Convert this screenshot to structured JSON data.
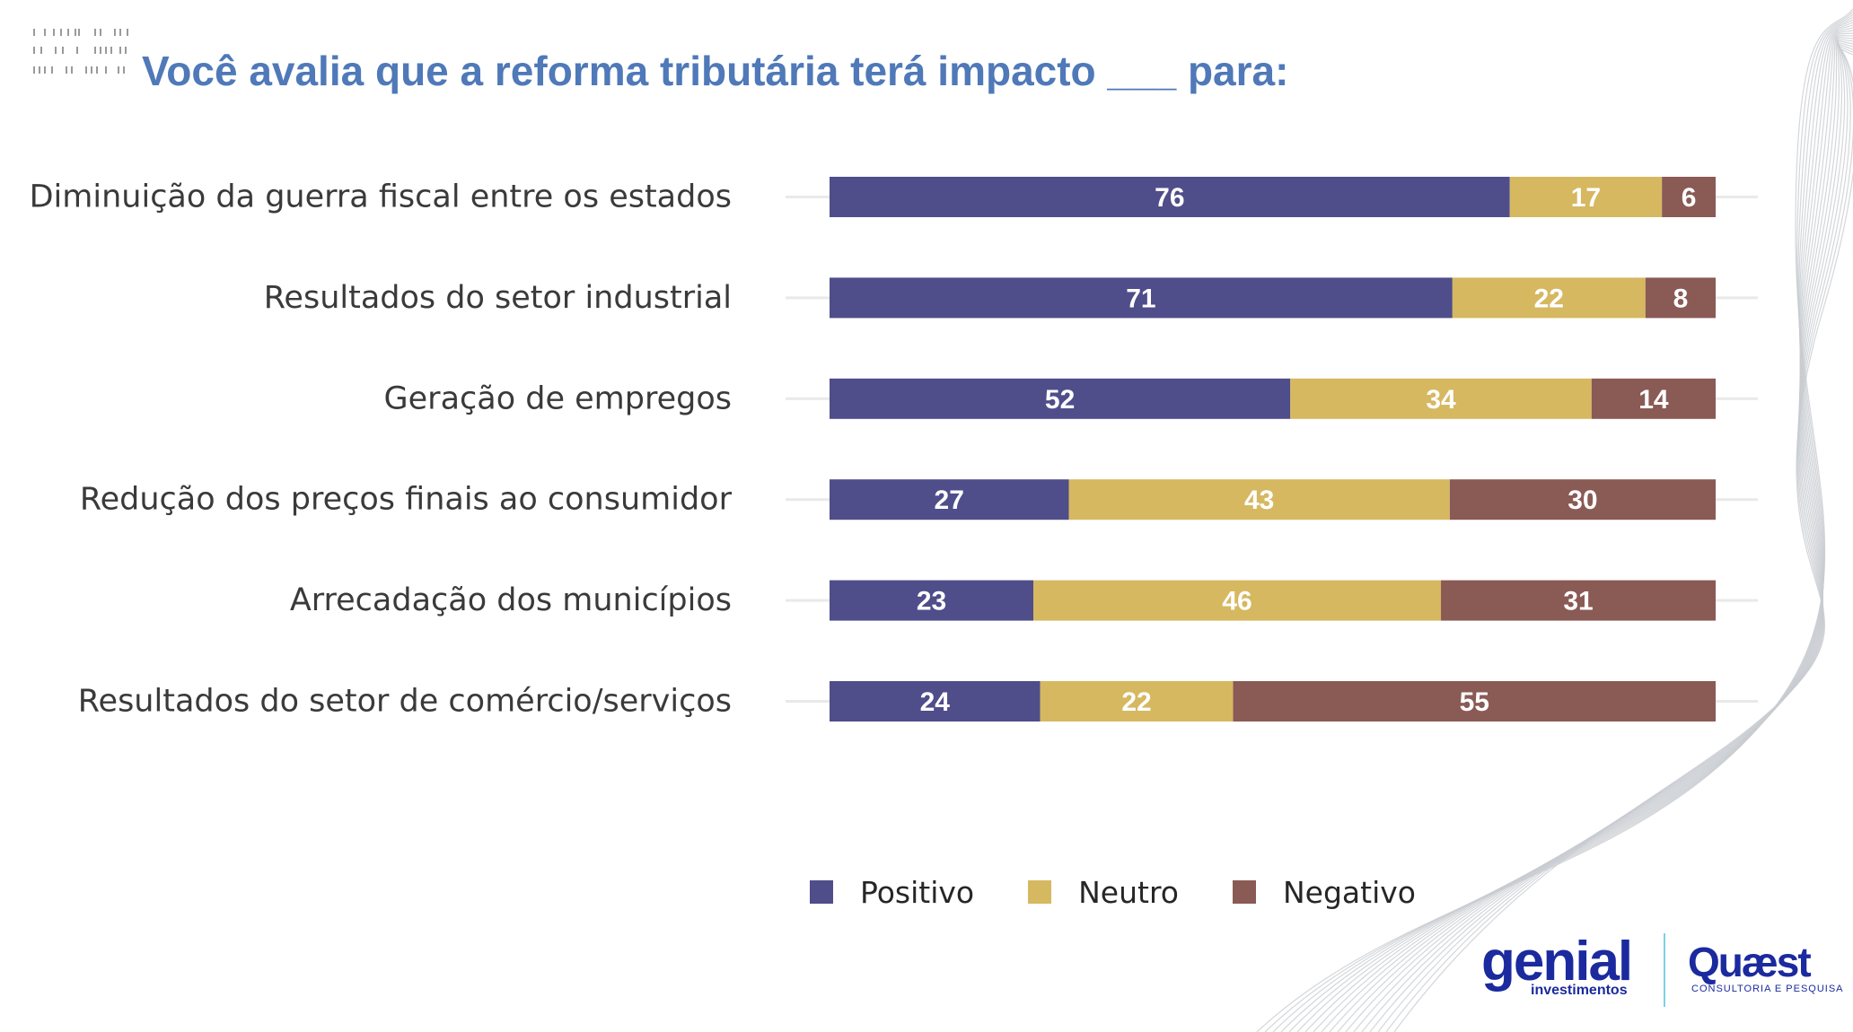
{
  "title": "Você avalia que a reforma tributária terá impacto ___ para:",
  "colors": {
    "title": "#4f79b8",
    "positivo": "#4f4d8a",
    "neutro": "#d6b861",
    "negativo": "#8a5a55",
    "track": "#e9e9e9"
  },
  "chart_data": {
    "type": "bar",
    "orientation": "horizontal",
    "stacked": true,
    "categories": [
      "Diminuição da guerra fiscal entre os estados",
      "Resultados do setor industrial",
      "Geração de empregos",
      "Redução dos preços finais ao consumidor",
      "Arrecadação dos municípios",
      "Resultados do setor de comércio/serviços"
    ],
    "series": [
      {
        "name": "Positivo",
        "color": "#4f4d8a",
        "values": [
          76,
          71,
          52,
          27,
          23,
          24
        ]
      },
      {
        "name": "Neutro",
        "color": "#d6b861",
        "values": [
          17,
          22,
          34,
          43,
          46,
          22
        ]
      },
      {
        "name": "Negativo",
        "color": "#8a5a55",
        "values": [
          6,
          8,
          14,
          30,
          31,
          55
        ]
      }
    ],
    "legend_position": "bottom",
    "grid": false
  },
  "logos": {
    "genial": {
      "word": "genial",
      "sub": "investimentos"
    },
    "quaest": {
      "word": "Quæst",
      "sub": "CONSULTORIA E PESQUISA"
    }
  }
}
